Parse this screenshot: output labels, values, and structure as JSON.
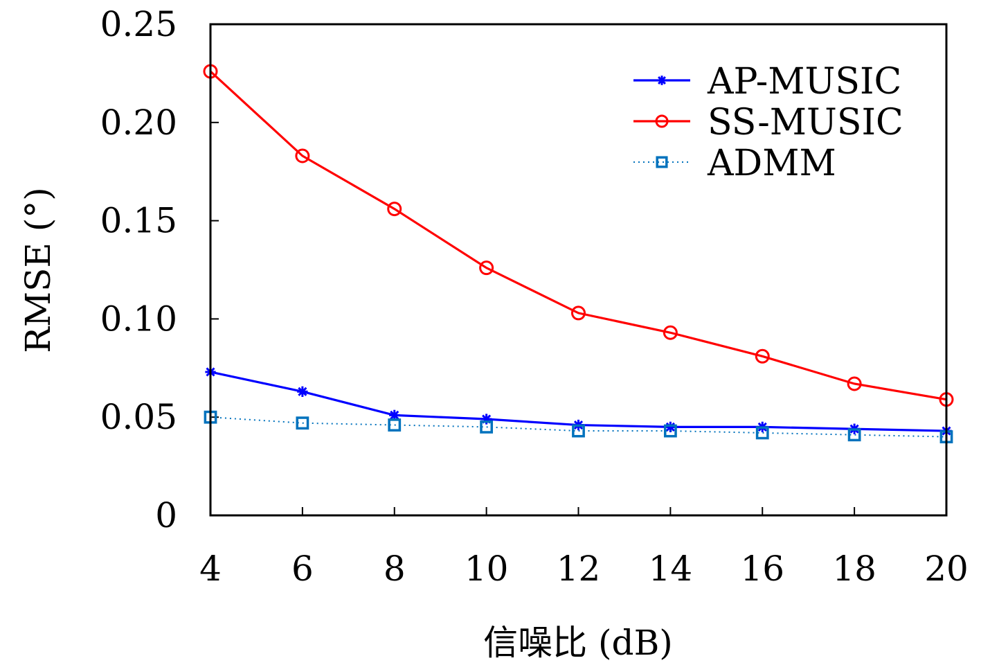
{
  "chart_data": {
    "type": "line",
    "xlabel": "信噪比 (dB)",
    "ylabel": "RMSE (°)",
    "x": [
      4,
      6,
      8,
      10,
      12,
      14,
      16,
      18,
      20
    ],
    "xlim": [
      4,
      20
    ],
    "ylim": [
      0,
      0.25
    ],
    "xticks": [
      "4",
      "6",
      "8",
      "10",
      "12",
      "14",
      "16",
      "18",
      "20"
    ],
    "yticks": [
      "0",
      "0.05",
      "0.10",
      "0.15",
      "0.20",
      "0.25"
    ],
    "ytick_values": [
      0,
      0.05,
      0.1,
      0.15,
      0.2,
      0.25
    ],
    "grid": false,
    "legend_position": "top-right",
    "series": [
      {
        "name": "AP-MUSIC",
        "color": "#0000ff",
        "marker": "asterisk",
        "line": "solid",
        "values": [
          0.073,
          0.063,
          0.051,
          0.049,
          0.046,
          0.045,
          0.045,
          0.044,
          0.043
        ]
      },
      {
        "name": "SS-MUSIC",
        "color": "#ff0000",
        "marker": "circle",
        "line": "solid",
        "values": [
          0.226,
          0.183,
          0.156,
          0.126,
          0.103,
          0.093,
          0.081,
          0.067,
          0.059
        ]
      },
      {
        "name": "ADMM",
        "color": "#0072bd",
        "marker": "square",
        "line": "dotted",
        "values": [
          0.05,
          0.047,
          0.046,
          0.045,
          0.043,
          0.043,
          0.042,
          0.041,
          0.04
        ]
      }
    ]
  }
}
